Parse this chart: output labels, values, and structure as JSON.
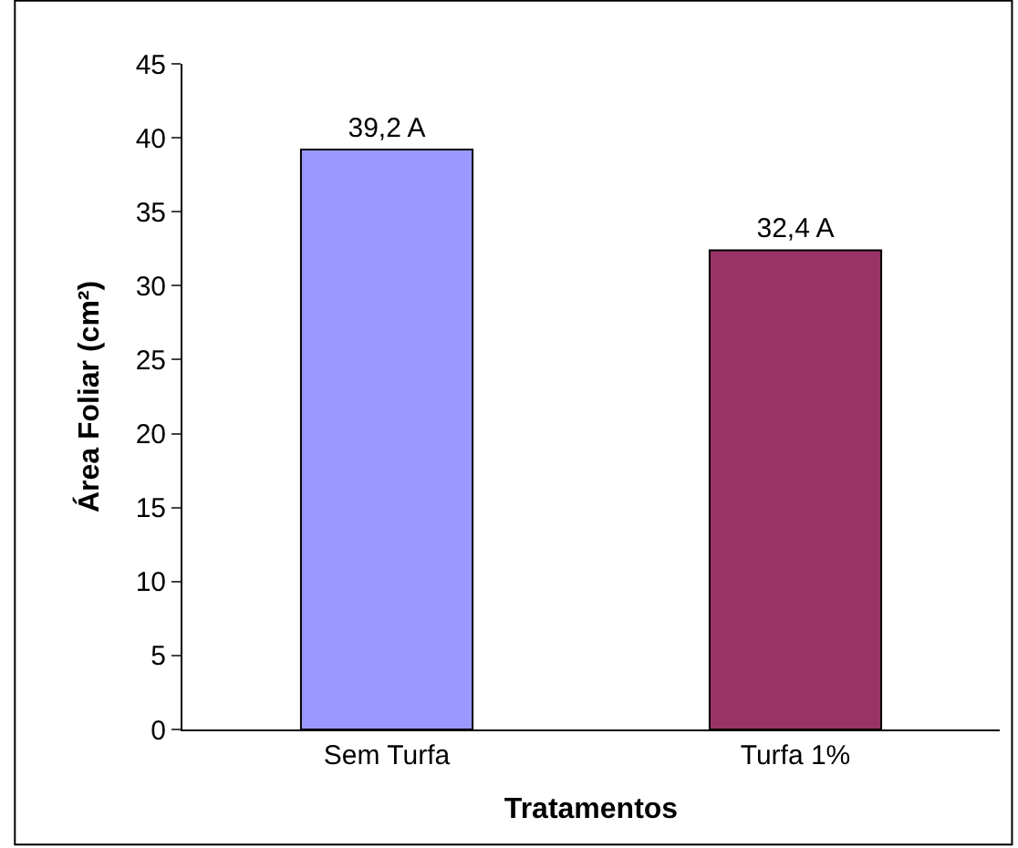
{
  "chart_data": {
    "type": "bar",
    "xlabel": "Tratamentos",
    "ylabel": "Área Foliar (cm²)",
    "categories": [
      "Sem Turfa",
      "Turfa 1%"
    ],
    "values": [
      39.2,
      32.4
    ],
    "colors": [
      "#9999ff",
      "#993366"
    ],
    "value_labels": [
      "39,2 A",
      "32,4 A"
    ],
    "ylim": [
      0,
      45
    ],
    "yticks": [
      0,
      5,
      10,
      15,
      20,
      25,
      30,
      35,
      40,
      45
    ],
    "legend": false
  }
}
